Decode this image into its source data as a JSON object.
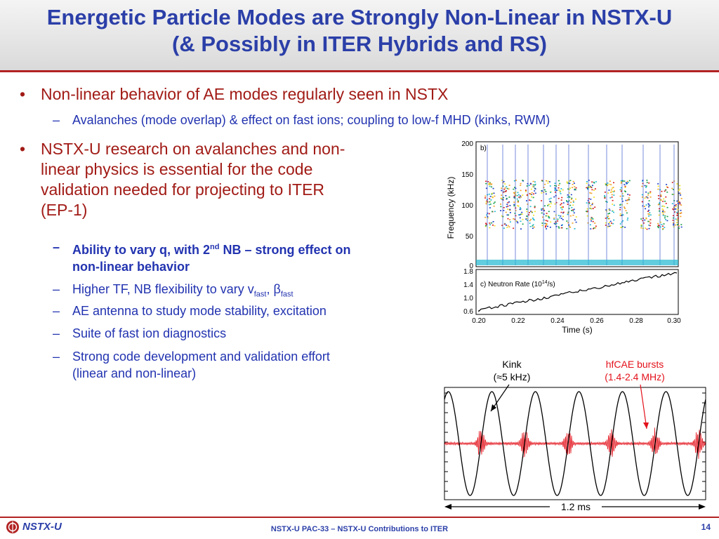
{
  "title": {
    "line1": "Energetic Particle Modes are Strongly Non-Linear in NSTX-U",
    "line2": "(& Possibly in ITER Hybrids and RS)"
  },
  "bullets": [
    {
      "text": "Non-linear behavior of AE modes regularly seen in NSTX",
      "subs": [
        "Avalanches (mode overlap) & effect on fast ions; coupling to low-f MHD (kinks, RWM)"
      ]
    },
    {
      "lines": [
        "NSTX-U research on avalanches and non-",
        "linear physics is essential for the code",
        "validation needed for projecting to ITER",
        "(EP-1)"
      ],
      "subs": {
        "s1_pre": "Ability to vary q, with 2",
        "s1_sup": "nd",
        "s1_post": " NB – strong effect on",
        "s1_line2": "non-linear behavior",
        "s2_pre": "Higher TF, NB flexibility to vary v",
        "s2_sub1": "fast",
        "s2_mid": ", β",
        "s2_sub2": "fast",
        "s3": "AE antenna to study mode stability, excitation",
        "s4": "Suite of fast ion diagnostics",
        "s5_line1": "Strong code development and validation effort",
        "s5_line2": "(linear and non-linear)"
      }
    }
  ],
  "figure_top": {
    "panel_b_label": "b)",
    "ylabel": "Frequency (kHz)",
    "yticks": [
      "200",
      "150",
      "100",
      "50",
      "0"
    ],
    "panel_c_label_pre": "c) Neutron Rate (10",
    "panel_c_label_sup": "14",
    "panel_c_label_post": "/s)",
    "c_yticks": [
      "1.8",
      "1.4",
      "1.0",
      "0.6"
    ],
    "xticks": [
      "0.20",
      "0.22",
      "0.24",
      "0.26",
      "0.28",
      "0.30"
    ],
    "xlabel": "Time (s)"
  },
  "figure_bottom": {
    "kink_label1": "Kink",
    "kink_label2": "(≈5 kHz)",
    "hfcae_label1": "hfCAE bursts",
    "hfcae_label2": "(1.4-2.4 MHz)",
    "timescale": "1.2 ms",
    "kink_color": "#000000",
    "hfcae_color": "#e3121b"
  },
  "footer": {
    "logo": "NSTX-U",
    "center": "NSTX-U PAC-33 – NSTX-U Contributions to ITER",
    "page": "14"
  },
  "colors": {
    "title": "#2b3fa8",
    "bullet": "#a11b16",
    "sub": "#2233b0",
    "accent_rule": "#b22222"
  }
}
